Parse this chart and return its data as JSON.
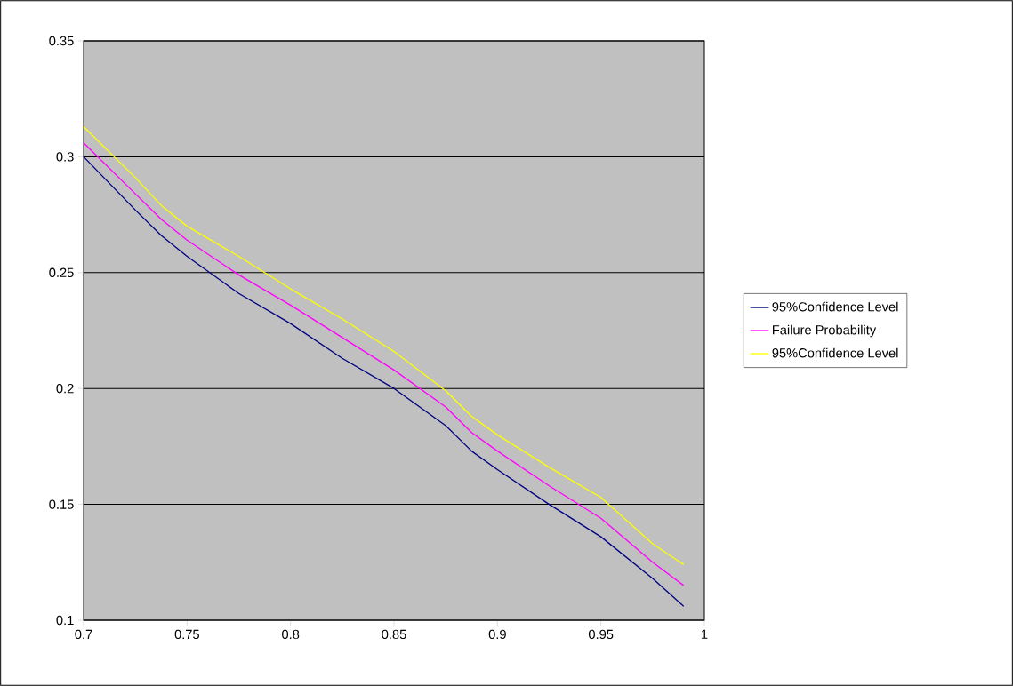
{
  "chart_data": {
    "type": "line",
    "x": [
      0.7,
      0.725,
      0.7375,
      0.75,
      0.775,
      0.8,
      0.825,
      0.85,
      0.875,
      0.8875,
      0.9,
      0.925,
      0.95,
      0.975,
      0.99
    ],
    "series": [
      {
        "name": "95%Confidence Level",
        "color": "#000080",
        "values": [
          0.3,
          0.277,
          0.266,
          0.257,
          0.241,
          0.228,
          0.213,
          0.2,
          0.184,
          0.173,
          0.165,
          0.15,
          0.136,
          0.118,
          0.106
        ]
      },
      {
        "name": "Failure Probability",
        "color": "#ff00ff",
        "values": [
          0.306,
          0.284,
          0.273,
          0.264,
          0.249,
          0.236,
          0.222,
          0.208,
          0.192,
          0.181,
          0.173,
          0.158,
          0.144,
          0.125,
          0.115
        ]
      },
      {
        "name": "95%Confidence Level",
        "color": "#ffff00",
        "values": [
          0.313,
          0.291,
          0.279,
          0.27,
          0.257,
          0.243,
          0.23,
          0.216,
          0.199,
          0.188,
          0.18,
          0.166,
          0.153,
          0.133,
          0.124
        ]
      }
    ],
    "xlim": [
      0.7,
      1
    ],
    "xticks": [
      0.7,
      0.75,
      0.8,
      0.85,
      0.9,
      0.95,
      1
    ],
    "ylim": [
      0.1,
      0.35
    ],
    "yticks": [
      0.1,
      0.15,
      0.2,
      0.25,
      0.3,
      0.35
    ],
    "grid": "y",
    "legend": "right",
    "marker": "none",
    "line_style": "solid"
  }
}
